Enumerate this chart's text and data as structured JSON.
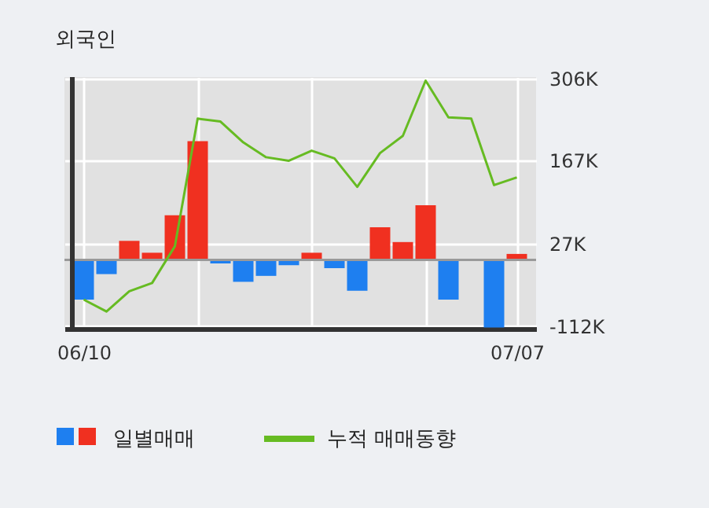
{
  "chart_data": {
    "type": "bar",
    "title": "외국인",
    "categories": [
      "06/10",
      null,
      null,
      null,
      null,
      null,
      null,
      null,
      null,
      null,
      null,
      null,
      null,
      null,
      null,
      null,
      null,
      null,
      null,
      "07/07"
    ],
    "series": [
      {
        "name": "일별매매",
        "colors": [
          "#1e7ff0",
          "#1e7ff0",
          "#f03020",
          "#f03020",
          "#f03020",
          "#f03020",
          "#1e7ff0",
          "#1e7ff0",
          "#1e7ff0",
          "#1e7ff0",
          "#f03020",
          "#1e7ff0",
          "#1e7ff0",
          "#f03020",
          "#f03020",
          "#f03020",
          "#1e7ff0",
          "#1e7ff0",
          "#1e7ff0",
          "#f03020"
        ],
        "values": [
          -67,
          -24,
          32,
          12,
          75,
          200,
          -6,
          -37,
          -27,
          -9,
          12,
          -14,
          -52,
          55,
          30,
          92,
          -67,
          0,
          -114,
          10
        ]
      },
      {
        "name": "누적 매매동향",
        "type": "line",
        "color": "#66bb22",
        "values": [
          -67,
          -87,
          -53,
          -39,
          23,
          238,
          233,
          198,
          173,
          167,
          184,
          171,
          123,
          180,
          209,
          302,
          240,
          238,
          126,
          139
        ]
      }
    ],
    "ylim": [
      -116,
      308
    ],
    "yticks": [
      {
        "value": -112,
        "label": "-112K"
      },
      {
        "value": 27,
        "label": "27K"
      },
      {
        "value": 167,
        "label": "167K"
      },
      {
        "value": 306,
        "label": "306K"
      }
    ],
    "ref_lines": [
      {
        "axis": "y",
        "value": 0,
        "color": "#999999"
      }
    ],
    "grid": true,
    "legend": "bottom"
  }
}
